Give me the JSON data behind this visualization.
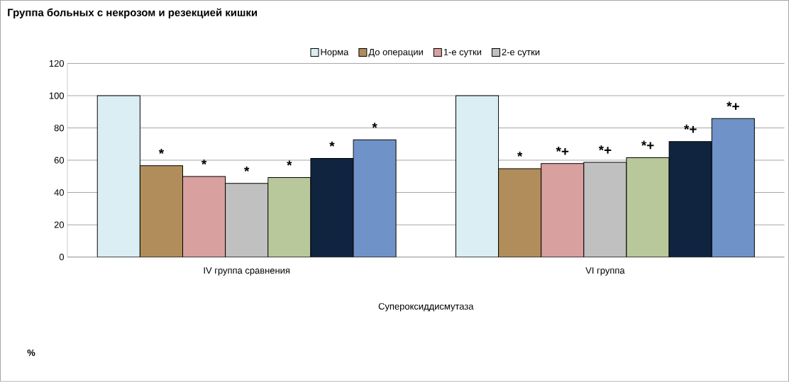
{
  "chart_data": {
    "type": "bar",
    "title": "Группа больных с некрозом и резекцией кишки",
    "xlabel": "Супероксиддисмутаза",
    "categories": [
      "IV группа сравнения",
      "VI группа"
    ],
    "series": [
      {
        "name": "Норма",
        "color": "#daeef3",
        "values": [
          100,
          100
        ]
      },
      {
        "name": "До операции",
        "color": "#b08d5a",
        "values": [
          56.6,
          54.8
        ],
        "value_labels": [
          "*",
          "*"
        ]
      },
      {
        "name": "1-е сутки",
        "color": "#d9a0a0",
        "values": [
          49.9,
          57.9
        ],
        "value_labels": [
          "*",
          "*+"
        ]
      },
      {
        "name": "2-е сутки",
        "color": "#c0c0c0",
        "values": [
          45.6,
          58.7
        ],
        "value_labels": [
          "*",
          "*+"
        ]
      },
      {
        "color": "#b9c89a",
        "values": [
          49.3,
          61.6
        ],
        "value_labels": [
          "*",
          "*+"
        ]
      },
      {
        "color": "#10243f",
        "values": [
          61.1,
          71.6
        ],
        "value_labels": [
          "*",
          "*+"
        ]
      },
      {
        "color": "#6f93c8",
        "values": [
          72.7,
          85.8
        ],
        "value_labels": [
          "*",
          "*+"
        ]
      }
    ],
    "ylim": [
      0,
      120
    ],
    "yticks": [
      0,
      20,
      40,
      60,
      80,
      100,
      120
    ],
    "grid": "y",
    "legend": "top",
    "annotations": [
      "%"
    ]
  }
}
